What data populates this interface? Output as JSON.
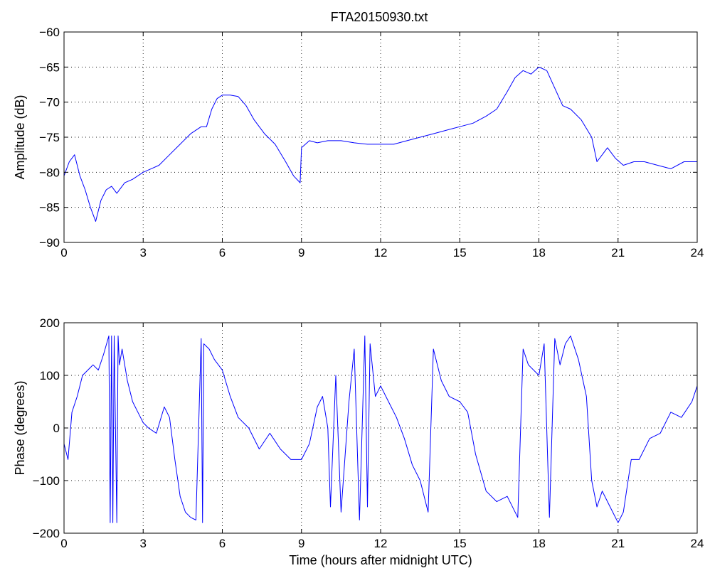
{
  "figure": {
    "title": "FTA20150930.txt"
  },
  "chart_data": [
    {
      "type": "line",
      "title": "FTA20150930.txt",
      "xlabel": "",
      "ylabel": "Amplitude (dB)",
      "xlim": [
        0,
        24
      ],
      "ylim": [
        -90,
        -60
      ],
      "x_ticks": [
        0,
        3,
        6,
        9,
        12,
        15,
        18,
        21,
        24
      ],
      "y_ticks": [
        -90,
        -85,
        -80,
        -75,
        -70,
        -65,
        -60
      ],
      "x_tick_labels": [
        "0",
        "3",
        "6",
        "9",
        "12",
        "15",
        "18",
        "21",
        "24"
      ],
      "y_tick_labels": [
        "−90",
        "−85",
        "−80",
        "−75",
        "−70",
        "−65",
        "−60"
      ],
      "grid": true,
      "series": [
        {
          "color": "#0000ff",
          "x": [
            0,
            0.2,
            0.4,
            0.6,
            0.8,
            1.0,
            1.2,
            1.4,
            1.6,
            1.8,
            2.0,
            2.3,
            2.6,
            3.0,
            3.3,
            3.6,
            4.0,
            4.4,
            4.8,
            5.2,
            5.4,
            5.6,
            5.8,
            6.0,
            6.3,
            6.6,
            6.9,
            7.2,
            7.6,
            8.0,
            8.4,
            8.7,
            8.95,
            9.0,
            9.3,
            9.6,
            10.0,
            10.5,
            11.0,
            11.5,
            12.0,
            12.5,
            13.0,
            13.5,
            14.0,
            14.5,
            15.0,
            15.5,
            16.0,
            16.4,
            16.8,
            17.1,
            17.4,
            17.7,
            18.0,
            18.3,
            18.6,
            18.9,
            19.2,
            19.6,
            20.0,
            20.2,
            20.4,
            20.6,
            20.9,
            21.2,
            21.6,
            22.0,
            22.5,
            23.0,
            23.5,
            24.0
          ],
          "y": [
            -80.5,
            -78.5,
            -77.5,
            -80.5,
            -82.5,
            -85.0,
            -87.0,
            -84.0,
            -82.5,
            -82.0,
            -83.0,
            -81.5,
            -81.0,
            -80.0,
            -79.5,
            -79.0,
            -77.5,
            -76.0,
            -74.5,
            -73.5,
            -73.5,
            -71.0,
            -69.5,
            -69.0,
            -69.0,
            -69.2,
            -70.5,
            -72.5,
            -74.5,
            -76.0,
            -78.5,
            -80.5,
            -81.5,
            -76.5,
            -75.5,
            -75.8,
            -75.5,
            -75.5,
            -75.8,
            -76.0,
            -76.0,
            -76.0,
            -75.5,
            -75.0,
            -74.5,
            -74.0,
            -73.5,
            -73.0,
            -72.0,
            -71.0,
            -68.5,
            -66.5,
            -65.5,
            -66.0,
            -65.0,
            -65.5,
            -68.0,
            -70.5,
            -71.0,
            -72.5,
            -75.0,
            -78.5,
            -77.5,
            -76.5,
            -78.0,
            -79.0,
            -78.5,
            -78.5,
            -79.0,
            -79.5,
            -78.5,
            -78.5
          ]
        }
      ]
    },
    {
      "type": "line",
      "title": "",
      "xlabel": "Time (hours after midnight UTC)",
      "ylabel": "Phase (degrees)",
      "xlim": [
        0,
        24
      ],
      "ylim": [
        -200,
        200
      ],
      "x_ticks": [
        0,
        3,
        6,
        9,
        12,
        15,
        18,
        21,
        24
      ],
      "y_ticks": [
        -200,
        -100,
        0,
        100,
        200
      ],
      "x_tick_labels": [
        "0",
        "3",
        "6",
        "9",
        "12",
        "15",
        "18",
        "21",
        "24"
      ],
      "y_tick_labels": [
        "−200",
        "−100",
        "0",
        "100",
        "200"
      ],
      "grid": true,
      "series": [
        {
          "color": "#0000ff",
          "x": [
            0,
            0.15,
            0.3,
            0.5,
            0.7,
            0.9,
            1.1,
            1.3,
            1.5,
            1.7,
            1.75,
            1.8,
            1.85,
            1.9,
            2.0,
            2.05,
            2.1,
            2.2,
            2.4,
            2.6,
            2.8,
            3.0,
            3.2,
            3.5,
            3.8,
            4.0,
            4.2,
            4.4,
            4.6,
            4.8,
            5.0,
            5.2,
            5.25,
            5.3,
            5.5,
            5.7,
            6.0,
            6.3,
            6.6,
            7.0,
            7.4,
            7.8,
            8.2,
            8.6,
            9.0,
            9.3,
            9.6,
            9.8,
            10.0,
            10.1,
            10.3,
            10.5,
            10.8,
            11.0,
            11.2,
            11.4,
            11.5,
            11.6,
            11.8,
            12.0,
            12.3,
            12.6,
            12.9,
            13.2,
            13.5,
            13.8,
            14.0,
            14.3,
            14.6,
            15.0,
            15.3,
            15.6,
            16.0,
            16.4,
            16.8,
            17.2,
            17.4,
            17.6,
            18.0,
            18.2,
            18.4,
            18.6,
            18.8,
            19.0,
            19.2,
            19.5,
            19.8,
            20.0,
            20.2,
            20.4,
            20.6,
            20.8,
            21.0,
            21.2,
            21.5,
            21.8,
            22.2,
            22.6,
            23.0,
            23.4,
            23.8,
            24.0
          ],
          "y": [
            -30,
            -60,
            30,
            60,
            100,
            110,
            120,
            110,
            140,
            175,
            -180,
            175,
            -180,
            175,
            -180,
            175,
            120,
            150,
            90,
            50,
            30,
            10,
            0,
            -10,
            40,
            20,
            -60,
            -130,
            -160,
            -170,
            -175,
            170,
            -180,
            160,
            150,
            130,
            110,
            60,
            20,
            0,
            -40,
            -10,
            -40,
            -60,
            -60,
            -30,
            40,
            60,
            0,
            -150,
            100,
            -160,
            50,
            150,
            -175,
            175,
            -150,
            160,
            60,
            80,
            50,
            20,
            -20,
            -70,
            -100,
            -160,
            150,
            90,
            60,
            50,
            30,
            -50,
            -120,
            -140,
            -130,
            -170,
            150,
            120,
            100,
            160,
            -170,
            170,
            120,
            160,
            175,
            130,
            60,
            -100,
            -150,
            -120,
            -140,
            -160,
            -180,
            -160,
            -60,
            -60,
            -20,
            -10,
            30,
            20,
            50,
            80
          ]
        }
      ]
    }
  ]
}
